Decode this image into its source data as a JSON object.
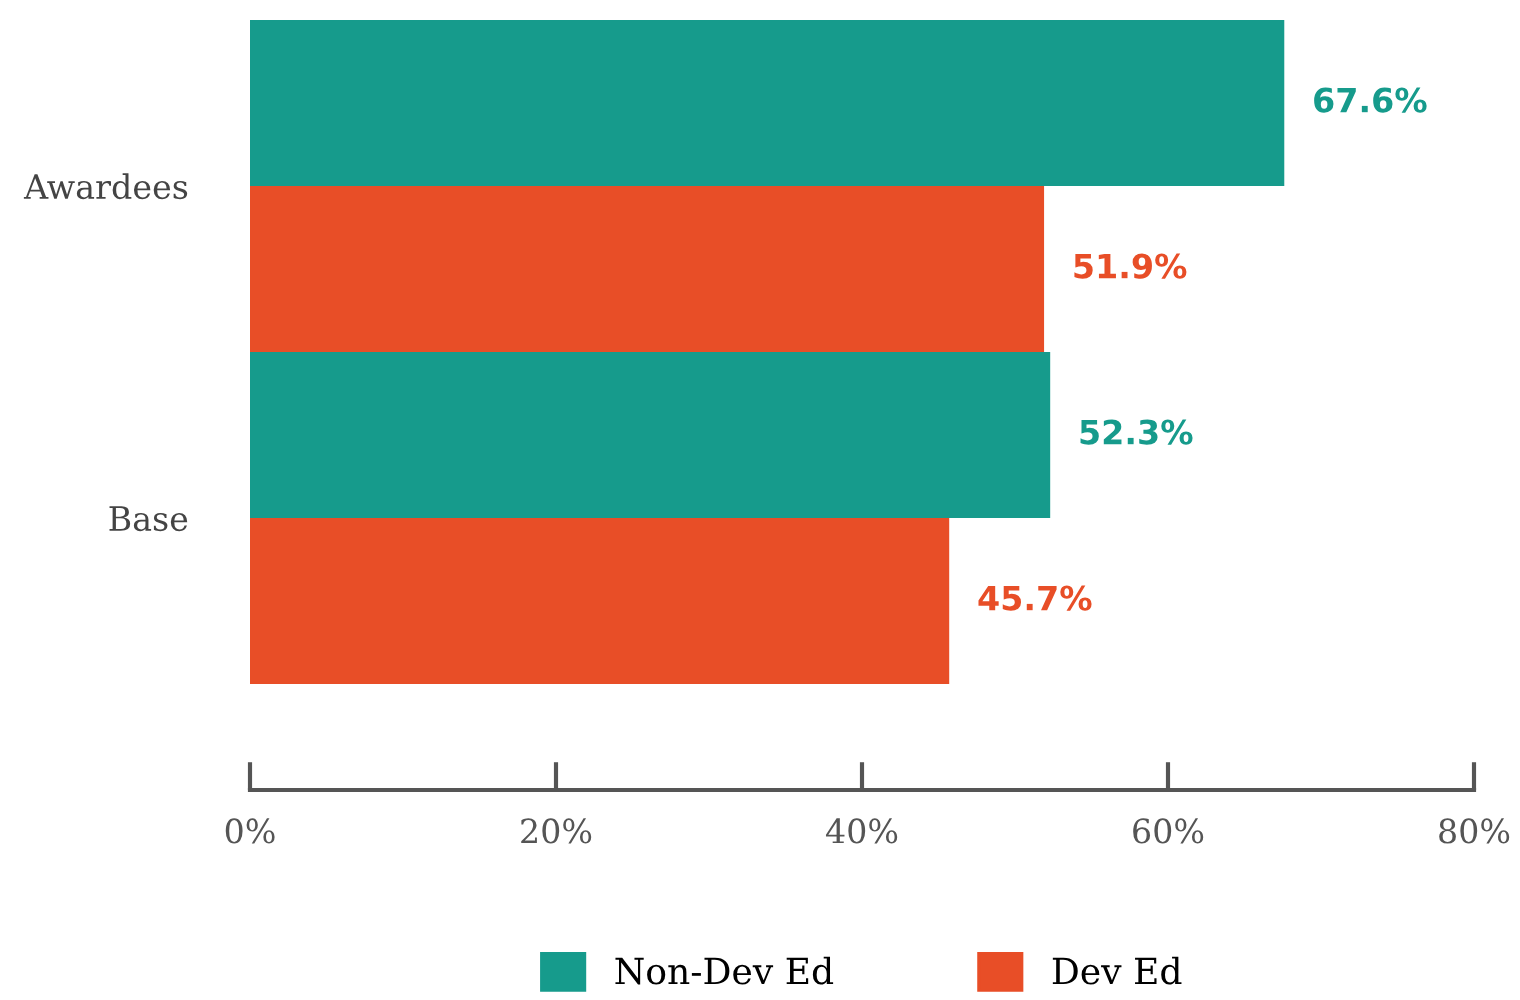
{
  "chart_data": {
    "type": "bar",
    "orientation": "horizontal",
    "categories": [
      "Awardees",
      "Base"
    ],
    "series": [
      {
        "name": "Non-Dev Ed",
        "color": "#169b8c",
        "values": [
          67.6,
          52.3
        ],
        "value_labels": [
          "67.6%",
          "52.3%"
        ]
      },
      {
        "name": "Dev Ed",
        "color": "#e84e27",
        "values": [
          51.9,
          45.7
        ],
        "value_labels": [
          "51.9%",
          "45.7%"
        ]
      }
    ],
    "xlim": [
      0,
      80
    ],
    "xticks": [
      {
        "value": 0,
        "label": "0%"
      },
      {
        "value": 20,
        "label": "20%"
      },
      {
        "value": 40,
        "label": "40%"
      },
      {
        "value": 60,
        "label": "60%"
      },
      {
        "value": 80,
        "label": "80%"
      }
    ],
    "grid": false,
    "legend": "bottom"
  }
}
